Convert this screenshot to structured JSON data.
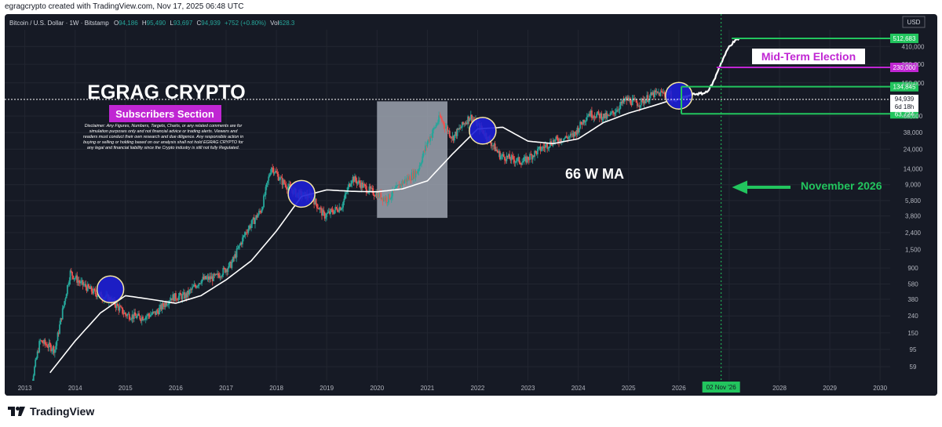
{
  "header": {
    "attribution": "egragcrypto created with TradingView.com, Nov 17, 2025 06:48 UTC"
  },
  "symbol_line": {
    "name": "Bitcoin / U.S. Dollar · 1W · Bitstamp",
    "o_label": "O",
    "o": "94,186",
    "h_label": "H",
    "h": "95,490",
    "l_label": "L",
    "l": "93,697",
    "c_label": "C",
    "c": "94,939",
    "chg": "+752 (+0.80%)",
    "vol_label": "Vol",
    "vol": "628.3"
  },
  "currency": "USD",
  "annotations": {
    "brand": "EGRAG CRYPTO",
    "subscribers": "Subscribers Section",
    "disclaimer": [
      "Disclaimer: Any Figures, Numbers, Targets, Charts, or any related comments are for",
      "simulation purposes only and not financial advice or trading alerts. Viewers and",
      "readers must conduct their own research and due diligence. Any responsible action in",
      "buying or selling or holding based on our analysis shall not hold EGRAG CRYPTO for",
      "any legal and financial liability since the Crypto industry is still not fully Regulated."
    ],
    "ma_label": "66 W MA",
    "midterm": "Mid-Term Election",
    "november": "November 2026",
    "date_marker": "02 Nov '26"
  },
  "price_tags": [
    {
      "label": "512,683",
      "value": 512683,
      "color": "#22c55e"
    },
    {
      "label": "230,000",
      "value": 230000,
      "color": "#c026d3"
    },
    {
      "label": "134,845",
      "value": 134845,
      "color": "#22c55e"
    },
    {
      "label": "63,724",
      "value": 63724,
      "color": "#22c55e"
    }
  ],
  "current_price": {
    "label": "94,939",
    "countdown": "6d 18h"
  },
  "colors": {
    "background": "#161a25",
    "up": "#26a69a",
    "down": "#ef5350",
    "ma": "#ffffff",
    "green": "#22c55e",
    "magenta": "#c026d3",
    "circle_fill": "#1d1fd6",
    "circle_stroke": "#f5e6a3",
    "shaded_box": "#9ca3af"
  },
  "chart_data": {
    "type": "line",
    "yscale": "log",
    "ylim": [
      40,
      650000
    ],
    "xlim": [
      2012.6,
      2030.2
    ],
    "x_ticks": [
      "2013",
      "2014",
      "2015",
      "2016",
      "2017",
      "2018",
      "2019",
      "2020",
      "2021",
      "2022",
      "2023",
      "2024",
      "2025",
      "2026",
      "2027",
      "2028",
      "2029",
      "2030"
    ],
    "y_ticks": [
      "410,000",
      "250,000",
      "150,000",
      "94,939",
      "60,000",
      "38,000",
      "24,000",
      "14,000",
      "9,000",
      "5,800",
      "3,800",
      "2,400",
      "1,500",
      "900",
      "580",
      "380",
      "240",
      "150",
      "95",
      "59"
    ],
    "series": [
      {
        "name": "",
        "x": [
          2013.0,
          2013.3,
          2013.6,
          2013.9,
          2014.1,
          2014.4,
          2014.7,
          2015.0,
          2015.3,
          2015.6,
          2015.9,
          2016.2,
          2016.5,
          2016.8,
          2017.1,
          2017.4,
          2017.7,
          2017.9,
          2018.1,
          2018.4,
          2018.7,
          2018.95,
          2019.3,
          2019.5,
          2019.8,
          2020.2,
          2020.5,
          2020.8,
          2021.0,
          2021.25,
          2021.5,
          2021.85,
          2022.1,
          2022.45,
          2022.9,
          2023.2,
          2023.5,
          2023.9,
          2024.2,
          2024.6,
          2024.95,
          2025.2,
          2025.5,
          2025.8,
          2025.88
        ],
        "values": [
          15,
          120,
          95,
          800,
          600,
          450,
          380,
          250,
          230,
          260,
          400,
          420,
          650,
          700,
          1000,
          2500,
          4500,
          15000,
          10000,
          7000,
          6500,
          3800,
          5000,
          11000,
          8000,
          6000,
          9500,
          13000,
          29000,
          58000,
          33000,
          60000,
          40000,
          20000,
          17000,
          23000,
          30000,
          35000,
          65000,
          58000,
          95000,
          85000,
          110000,
          115000,
          94939
        ]
      },
      {
        "name": "66 W MA",
        "x": [
          2013.5,
          2014.0,
          2014.5,
          2015.0,
          2015.5,
          2016.0,
          2016.5,
          2017.0,
          2017.5,
          2018.0,
          2018.5,
          2019.0,
          2019.5,
          2020.0,
          2020.5,
          2021.0,
          2021.5,
          2022.0,
          2022.5,
          2023.0,
          2023.5,
          2024.0,
          2024.5,
          2025.0,
          2025.5,
          2025.9
        ],
        "values": [
          50,
          120,
          260,
          420,
          380,
          340,
          420,
          650,
          1100,
          2500,
          6500,
          7800,
          7500,
          7400,
          8000,
          10000,
          21000,
          42000,
          44000,
          30000,
          28000,
          32000,
          50000,
          65000,
          80000,
          95000
        ]
      },
      {
        "name": "",
        "x": [
          2025.9,
          2026.1,
          2026.3,
          2026.5,
          2026.6,
          2026.7,
          2026.8,
          2026.9,
          2027.0,
          2027.1,
          2027.2
        ],
        "values": [
          90000,
          100000,
          110000,
          112000,
          125000,
          160000,
          230000,
          310000,
          410000,
          470000,
          512683
        ]
      }
    ],
    "price_levels": [
      512683,
      230000,
      134845,
      63724
    ],
    "highlighted_points": [
      {
        "x": 2014.7,
        "y": 500
      },
      {
        "x": 2018.5,
        "y": 7000
      },
      {
        "x": 2022.1,
        "y": 40000
      },
      {
        "x": 2026.0,
        "y": 105000
      }
    ],
    "shaded_range": {
      "x": [
        2020.0,
        2021.4
      ],
      "y": [
        3600,
        90000
      ]
    },
    "vertical_marker_x": 2026.84,
    "current_price": 94939
  }
}
